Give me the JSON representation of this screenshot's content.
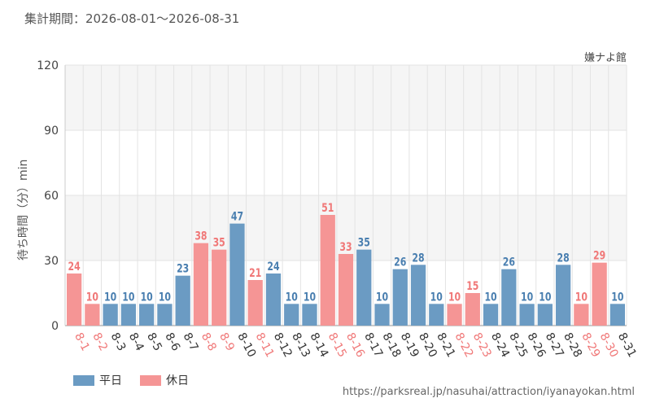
{
  "header": {
    "period": "集計期間：2026-08-01～2026-08-31",
    "attraction": "嫌ナよ館"
  },
  "footer": {
    "source_url": "https://parksreal.jp/nasuhai/attraction/iyanayokan.html"
  },
  "colors": {
    "weekday": "#6b9bc3",
    "holiday": "#f59595",
    "weekday_label": "#4a7fb0",
    "holiday_label": "#f07878",
    "band": "#f5f5f5",
    "grid": "#e3e3e3"
  },
  "chart_data": {
    "type": "bar",
    "title": "",
    "xlabel": "",
    "ylabel": "待ち時間（分）min",
    "ylim": [
      0,
      120
    ],
    "yticks": [
      0,
      30,
      60,
      90,
      120
    ],
    "legend": {
      "position": "bottom-left",
      "entries": [
        {
          "key": "weekday",
          "label": "平日"
        },
        {
          "key": "holiday",
          "label": "休日"
        }
      ]
    },
    "categories": [
      "8-1",
      "8-2",
      "8-3",
      "8-4",
      "8-5",
      "8-6",
      "8-7",
      "8-8",
      "8-9",
      "8-10",
      "8-11",
      "8-12",
      "8-13",
      "8-14",
      "8-15",
      "8-16",
      "8-17",
      "8-18",
      "8-19",
      "8-20",
      "8-21",
      "8-22",
      "8-23",
      "8-24",
      "8-25",
      "8-26",
      "8-27",
      "8-28",
      "8-29",
      "8-30",
      "8-31"
    ],
    "values": [
      24,
      10,
      10,
      10,
      10,
      10,
      23,
      38,
      35,
      47,
      21,
      24,
      10,
      10,
      51,
      33,
      35,
      10,
      26,
      28,
      10,
      10,
      15,
      10,
      26,
      10,
      10,
      28,
      10,
      29,
      10
    ],
    "day_type": [
      "holiday",
      "holiday",
      "weekday",
      "weekday",
      "weekday",
      "weekday",
      "weekday",
      "holiday",
      "holiday",
      "weekday",
      "holiday",
      "weekday",
      "weekday",
      "weekday",
      "holiday",
      "holiday",
      "weekday",
      "weekday",
      "weekday",
      "weekday",
      "weekday",
      "holiday",
      "holiday",
      "weekday",
      "weekday",
      "weekday",
      "weekday",
      "weekday",
      "holiday",
      "holiday",
      "weekday"
    ]
  }
}
